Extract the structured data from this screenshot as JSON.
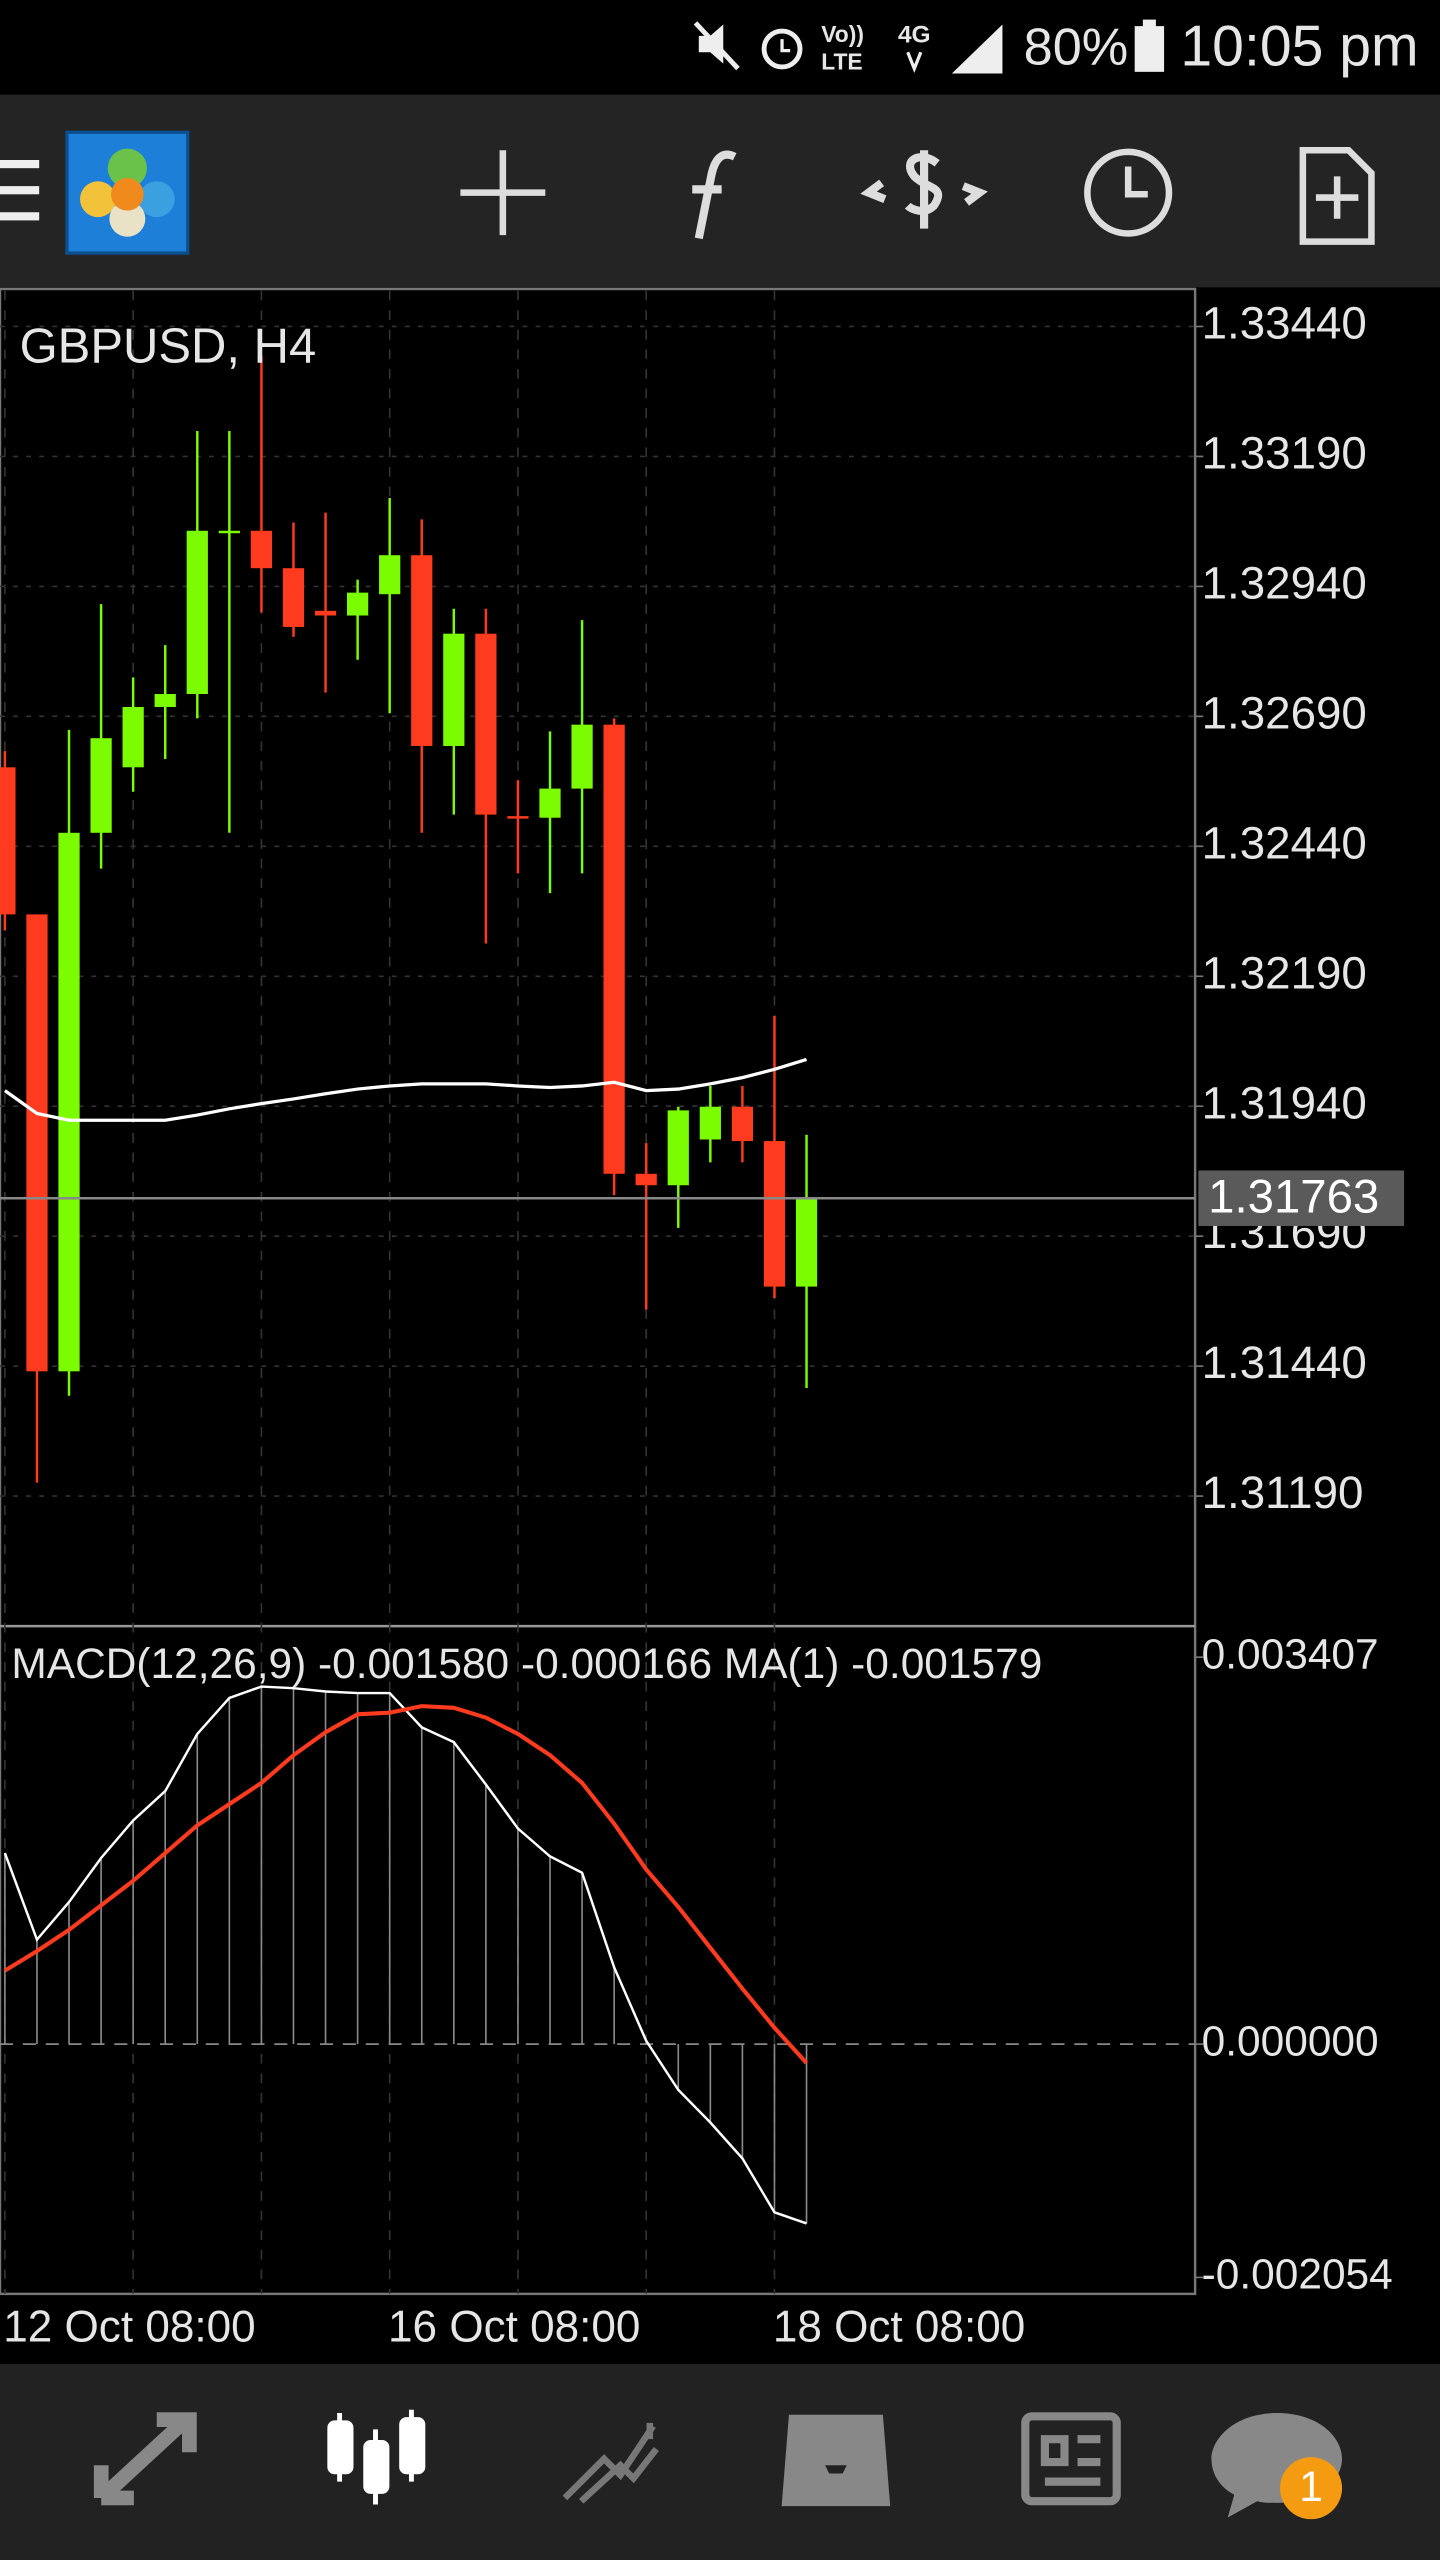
{
  "status_bar": {
    "volte": "Vo))",
    "lte": "LTE",
    "network": "4G",
    "battery": "80%",
    "time": "10:05 pm"
  },
  "notification_badge": "1",
  "chart_data": [
    {
      "type": "candlestick",
      "title": "GBPUSD, H4",
      "categories": [
        "12 Oct 08:00",
        null,
        null,
        null,
        null,
        null,
        null,
        null,
        null,
        null,
        null,
        null,
        "16 Oct 08:00",
        null,
        null,
        null,
        null,
        null,
        null,
        null,
        null,
        null,
        null,
        null,
        "18 Oct 08:00",
        null
      ],
      "open": [
        1.32592,
        1.32309,
        1.3143,
        1.32466,
        1.32592,
        1.32708,
        1.32733,
        1.33044,
        1.33047,
        1.32975,
        1.32893,
        1.32884,
        1.32925,
        1.33,
        1.32633,
        1.32849,
        1.32498,
        1.32495,
        1.32551,
        1.32674,
        1.3181,
        1.31788,
        1.31876,
        1.31939,
        1.31873,
        1.31593
      ],
      "high": [
        1.32623,
        1.32309,
        1.32664,
        1.32906,
        1.32765,
        1.32827,
        1.33239,
        1.33239,
        1.33383,
        1.33063,
        1.33082,
        1.32953,
        1.3311,
        1.33069,
        1.32897,
        1.32897,
        1.32567,
        1.32661,
        1.32875,
        1.32686,
        1.31869,
        1.31939,
        1.31979,
        1.31979,
        1.32114,
        1.31885
      ],
      "low": [
        1.32278,
        1.31216,
        1.31383,
        1.32397,
        1.32545,
        1.32608,
        1.32686,
        1.32466,
        1.3289,
        1.32843,
        1.32736,
        1.32799,
        1.32696,
        1.32466,
        1.32501,
        1.32253,
        1.32388,
        1.3235,
        1.32388,
        1.31769,
        1.31549,
        1.31706,
        1.31832,
        1.31832,
        1.31571,
        1.31398
      ],
      "close": [
        1.32309,
        1.3143,
        1.32466,
        1.32648,
        1.32708,
        1.32733,
        1.33047,
        1.33047,
        1.32975,
        1.32862,
        1.32884,
        1.32928,
        1.33,
        1.32633,
        1.32849,
        1.32501,
        1.32495,
        1.32551,
        1.32674,
        1.3181,
        1.31788,
        1.31932,
        1.31939,
        1.31873,
        1.31593,
        1.31763
      ],
      "up_color": "#7cfc00",
      "down_color": "#ff3b1f",
      "ma": {
        "color": "#ffffff",
        "values": [
          1.3197,
          1.31926,
          1.31913,
          1.31913,
          1.31913,
          1.31913,
          1.31923,
          1.31935,
          1.31945,
          1.31954,
          1.31964,
          1.31973,
          1.31979,
          1.31983,
          1.31983,
          1.31983,
          1.31979,
          1.31976,
          1.31979,
          1.31986,
          1.3197,
          1.31973,
          1.31983,
          1.31995,
          1.32011,
          1.3203
        ]
      },
      "current_price": 1.31763,
      "ylim": [
        1.30943,
        1.33509
      ],
      "yticks": [
        {
          "value": 1.3344,
          "label": "1.33440"
        },
        {
          "value": 1.3319,
          "label": "1.33190"
        },
        {
          "value": 1.3294,
          "label": "1.32940"
        },
        {
          "value": 1.3269,
          "label": "1.32690"
        },
        {
          "value": 1.3244,
          "label": "1.32440"
        },
        {
          "value": 1.3219,
          "label": "1.32190"
        },
        {
          "value": 1.3194,
          "label": "1.31940"
        },
        {
          "value": 1.3169,
          "label": "1.31690"
        },
        {
          "value": 1.3144,
          "label": "1.31440"
        },
        {
          "value": 1.3119,
          "label": "1.31190"
        }
      ],
      "grid": true
    },
    {
      "type": "macd",
      "title": "MACD(12,26,9) -0.001580 -0.000166 MA(1) -0.001579",
      "histogram": {
        "color": "#8a8a8a",
        "values": [
          0.001682,
          0.00092,
          0.001251,
          0.001639,
          0.001969,
          0.002228,
          0.002731,
          0.003048,
          0.003148,
          0.003134,
          0.003105,
          0.003091,
          0.003091,
          0.002789,
          0.002659,
          0.002286,
          0.001898,
          0.001653,
          0.001509,
          0.000676,
          2.9e-05,
          -0.000403,
          -0.00069,
          -0.001006,
          -0.001481,
          -0.00158
        ]
      },
      "signal": {
        "color": "#ff3b1f",
        "values": [
          0.000647,
          0.000819,
          0.001006,
          0.001222,
          0.001438,
          0.001682,
          0.001926,
          0.002113,
          0.0023,
          0.002544,
          0.002746,
          0.002904,
          0.002918,
          0.002976,
          0.002961,
          0.002875,
          0.002731,
          0.002544,
          0.0023,
          0.001941,
          0.001538,
          0.001208,
          0.000848,
          0.000489,
          0.000144,
          -0.000166
        ]
      },
      "ma": {
        "color": "#ffffff",
        "values": [
          0.001682,
          0.00092,
          0.001251,
          0.001639,
          0.001969,
          0.002228,
          0.002731,
          0.003048,
          0.003148,
          0.003134,
          0.003105,
          0.003091,
          0.003091,
          0.002789,
          0.002659,
          0.002286,
          0.001898,
          0.001653,
          0.001509,
          0.000676,
          2.9e-05,
          -0.000403,
          -0.00069,
          -0.001006,
          -0.001481,
          -0.001579
        ]
      },
      "ylim": [
        -0.002199,
        0.003666
      ],
      "yticks": [
        0.003407,
        {
          "value": 0,
          "label": "0.000000"
        },
        -0.002054
      ]
    }
  ]
}
